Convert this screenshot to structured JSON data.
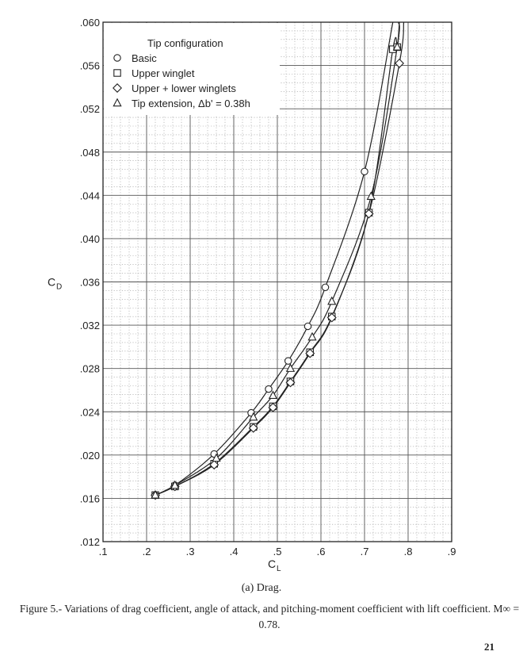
{
  "chart_data": {
    "type": "line",
    "ylabel": "C",
    "ylabel_sub": "D",
    "xlabel": "C",
    "xlabel_sub": "L",
    "xlim": [
      0.1,
      0.9
    ],
    "ylim": [
      0.012,
      0.06
    ],
    "x_tick_labels": [
      ".1",
      ".2",
      ".3",
      ".4",
      ".5",
      ".6",
      ".7",
      ".8",
      ".9"
    ],
    "y_tick_labels": [
      ".012",
      ".016",
      ".020",
      ".024",
      ".028",
      ".032",
      ".036",
      ".040",
      ".044",
      ".048",
      ".052",
      ".056",
      ".060"
    ],
    "grid": true,
    "legend": {
      "title": "Tip configuration",
      "placement": "top-left",
      "entries": [
        {
          "label": "Basic",
          "marker": "circle"
        },
        {
          "label": "Upper winglet",
          "marker": "square"
        },
        {
          "label": "Upper + lower winglets",
          "marker": "diamond"
        },
        {
          "label": "Tip extension, Δb' = 0.38h",
          "marker": "triangle"
        }
      ]
    },
    "series": [
      {
        "marker": "circle",
        "x": [
          0.22,
          0.265,
          0.355,
          0.44,
          0.48,
          0.525,
          0.57,
          0.61,
          0.7
        ],
        "y": [
          0.0163,
          0.0172,
          0.0201,
          0.0239,
          0.0261,
          0.0287,
          0.0319,
          0.0355,
          0.0462
        ],
        "curve_end": [
          0.765,
          0.06
        ]
      },
      {
        "marker": "square",
        "x": [
          0.22,
          0.265,
          0.355,
          0.445,
          0.49,
          0.53,
          0.575,
          0.625,
          0.71,
          0.765,
          0.775
        ],
        "y": [
          0.0163,
          0.0171,
          0.0192,
          0.0226,
          0.0245,
          0.0268,
          0.0295,
          0.0328,
          0.0424,
          0.0575,
          0.0577
        ],
        "curve_end": [
          0.78,
          0.06
        ]
      },
      {
        "marker": "diamond",
        "x": [
          0.22,
          0.265,
          0.355,
          0.445,
          0.49,
          0.53,
          0.575,
          0.625,
          0.71,
          0.78
        ],
        "y": [
          0.0163,
          0.0171,
          0.0191,
          0.0225,
          0.0244,
          0.0267,
          0.0294,
          0.0327,
          0.0423,
          0.0562
        ],
        "curve_end": [
          0.79,
          0.06
        ]
      },
      {
        "marker": "triangle",
        "x": [
          0.22,
          0.265,
          0.36,
          0.445,
          0.49,
          0.53,
          0.58,
          0.625,
          0.715,
          0.775
        ],
        "y": [
          0.0163,
          0.0172,
          0.0197,
          0.0235,
          0.0255,
          0.028,
          0.0309,
          0.0342,
          0.0439,
          0.0577
        ],
        "curve_end": [
          0.778,
          0.06
        ]
      }
    ]
  },
  "caption": {
    "sub": "(a) Drag.",
    "figure": "Figure 5.- Variations of drag coefficient, angle of attack, and pitching-moment coefficient with lift coefficient.  M∞ = 0.78."
  },
  "page_number": "21"
}
